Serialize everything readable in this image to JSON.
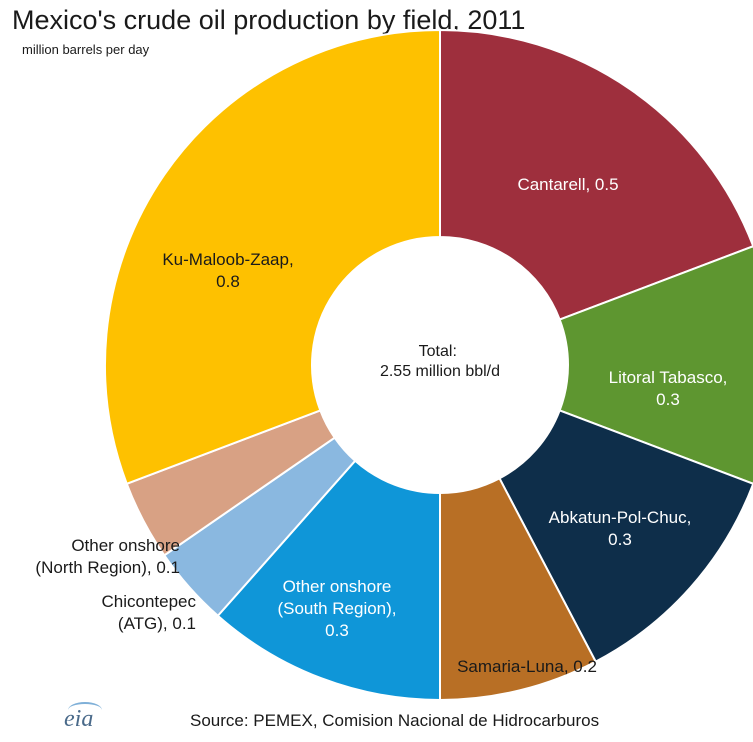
{
  "chart_data": {
    "type": "pie",
    "title": "Mexico's crude oil production by field, 2011",
    "subtitle": "million barrels per day",
    "center_label": [
      "Total:",
      "2.55 million bbl/d"
    ],
    "slices": [
      {
        "name": "Cantarell",
        "value": 0.5,
        "label": [
          "Cantarell, 0.5"
        ],
        "color": "#9e2f3d",
        "text_color": "#ffffff"
      },
      {
        "name": "Litoral Tabasco",
        "value": 0.3,
        "label": [
          "Litoral Tabasco,",
          "0.3"
        ],
        "color": "#5e9630",
        "text_color": "#ffffff"
      },
      {
        "name": "Abkatun-Pol-Chuc",
        "value": 0.3,
        "label": [
          "Abkatun-Pol-Chuc,",
          "0.3"
        ],
        "color": "#0e2e4a",
        "text_color": "#ffffff"
      },
      {
        "name": "Samaria-Luna",
        "value": 0.2,
        "label": [
          "Samaria-Luna, 0.2"
        ],
        "color": "#b86f25",
        "text_color": "#1a1a1a"
      },
      {
        "name": "Other onshore (South Region)",
        "value": 0.3,
        "label": [
          "Other onshore",
          "(South Region),",
          "0.3"
        ],
        "color": "#0f96d8",
        "text_color": "#ffffff"
      },
      {
        "name": "Chicontepec (ATG)",
        "value": 0.1,
        "label": [
          "Chicontepec",
          "(ATG), 0.1"
        ],
        "color": "#8ab8e0",
        "text_color": "#1a1a1a"
      },
      {
        "name": "Other onshore (North Region)",
        "value": 0.1,
        "label": [
          "Other onshore",
          "(North Region), 0.1"
        ],
        "color": "#d8a184",
        "text_color": "#1a1a1a"
      },
      {
        "name": "Ku-Maloob-Zaap",
        "value": 0.8,
        "label": [
          "Ku-Maloob-Zaap,",
          "0.8"
        ],
        "color": "#fec100",
        "text_color": "#1a1a1a"
      }
    ]
  },
  "footer": {
    "source": "Source: PEMEX, Comision Nacional de Hidrocarburos",
    "logo_text": "eia"
  }
}
